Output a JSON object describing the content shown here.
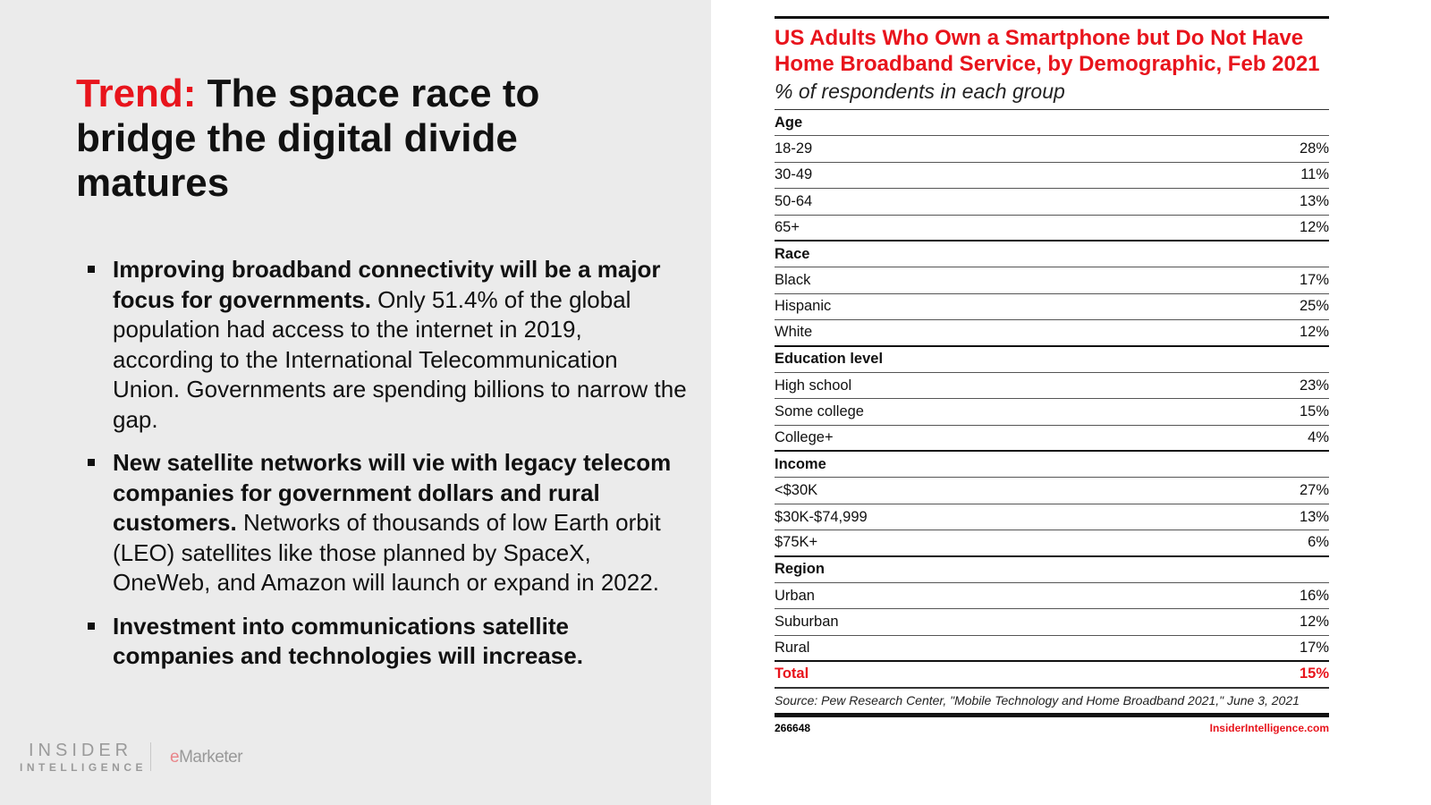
{
  "slide": {
    "title_label": "Trend:",
    "title_rest": " The space race to bridge the digital divide matures",
    "bullets": [
      {
        "bold": "Improving broadband connectivity will be a major focus for governments.",
        "text": " Only 51.4% of the global population had access to the internet in 2019, according to the International Telecommunication Union. Governments are spending billions to narrow the gap."
      },
      {
        "bold": "New satellite networks will vie with legacy telecom companies for government dollars and rural customers.",
        "text": " Networks of thousands of low Earth orbit (LEO) satellites like those planned by SpaceX, OneWeb, and Amazon will launch or expand in 2022."
      },
      {
        "bold": "Investment into communications satellite companies and technologies will increase.",
        "text": ""
      }
    ],
    "logo": {
      "line1": "INSIDER",
      "line2": "INTELLIGENCE",
      "brand2_e": "e",
      "brand2_rest": "Marketer"
    }
  },
  "chart": {
    "title": "US Adults Who Own a Smartphone but Do Not Have Home Broadband Service, by Demographic, Feb 2021",
    "subtitle": "% of respondents in each group",
    "rows": [
      {
        "label": "Age",
        "header": true
      },
      {
        "label": "18-29",
        "value": "28%"
      },
      {
        "label": "30-49",
        "value": "11%"
      },
      {
        "label": "50-64",
        "value": "13%"
      },
      {
        "label": "65+",
        "value": "12%",
        "last": true
      },
      {
        "label": "Race",
        "header": true
      },
      {
        "label": "Black",
        "value": "17%"
      },
      {
        "label": "Hispanic",
        "value": "25%"
      },
      {
        "label": "White",
        "value": "12%",
        "last": true
      },
      {
        "label": "Education level",
        "header": true
      },
      {
        "label": "High school",
        "value": "23%"
      },
      {
        "label": "Some college",
        "value": "15%"
      },
      {
        "label": "College+",
        "value": "4%",
        "last": true
      },
      {
        "label": "Income",
        "header": true
      },
      {
        "label": "<$30K",
        "value": "27%"
      },
      {
        "label": "$30K-$74,999",
        "value": "13%"
      },
      {
        "label": "$75K+",
        "value": "6%",
        "last": true
      },
      {
        "label": "Region",
        "header": true
      },
      {
        "label": "Urban",
        "value": "16%"
      },
      {
        "label": "Suburban",
        "value": "12%"
      },
      {
        "label": "Rural",
        "value": "17%",
        "last": true
      },
      {
        "label": "Total",
        "value": "15%",
        "total": true
      }
    ],
    "source": "Source: Pew Research Center, \"Mobile Technology and Home Broadband 2021,\" June 3, 2021",
    "id": "266648",
    "site": "InsiderIntelligence.com",
    "accent": "#e8141c"
  }
}
